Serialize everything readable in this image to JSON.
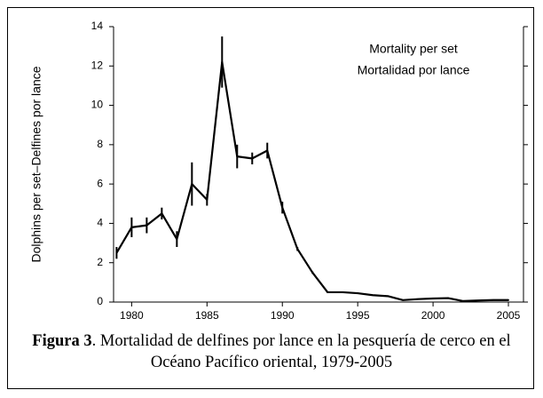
{
  "chart_data": {
    "type": "line",
    "ylabel": "Dolphins per set–Delfines por lance",
    "annotations": [
      "Mortality per set",
      "Mortalidad por lance"
    ],
    "x": [
      1979,
      1980,
      1981,
      1982,
      1983,
      1984,
      1985,
      1986,
      1987,
      1988,
      1989,
      1990,
      1991,
      1992,
      1993,
      1994,
      1995,
      1996,
      1997,
      1998,
      1999,
      2000,
      2001,
      2002,
      2003,
      2004,
      2005
    ],
    "series": [
      {
        "name": "Mortality per set",
        "color": "#000000",
        "values": [
          2.5,
          3.8,
          3.9,
          4.5,
          3.2,
          6.0,
          5.2,
          12.2,
          7.4,
          7.3,
          7.7,
          4.8,
          2.7,
          1.5,
          0.5,
          0.5,
          0.45,
          0.35,
          0.3,
          0.1,
          0.15,
          0.18,
          0.2,
          0.05,
          0.08,
          0.1,
          0.1
        ],
        "errors": [
          0.3,
          0.5,
          0.4,
          0.3,
          0.4,
          1.1,
          0.3,
          1.3,
          0.6,
          0.3,
          0.4,
          0.3,
          0.1,
          0.05,
          0.03,
          0.03,
          0.03,
          0.03,
          0.03,
          0.03,
          0.03,
          0.03,
          0.03,
          0.03,
          0.03,
          0.03,
          0.03
        ]
      }
    ],
    "xlim": [
      1978.8,
      2006
    ],
    "xticks": [
      1980,
      1985,
      1990,
      1995,
      2000,
      2005
    ],
    "ylim": [
      0,
      14
    ],
    "yticks": [
      0,
      2,
      4,
      6,
      8,
      10,
      12,
      14
    ],
    "caption": {
      "label": "Figura 3",
      "text": ". Mortalidad de delfines por lance en la pesquería de cerco en el Océano Pacífico oriental, 1979-2005"
    }
  }
}
